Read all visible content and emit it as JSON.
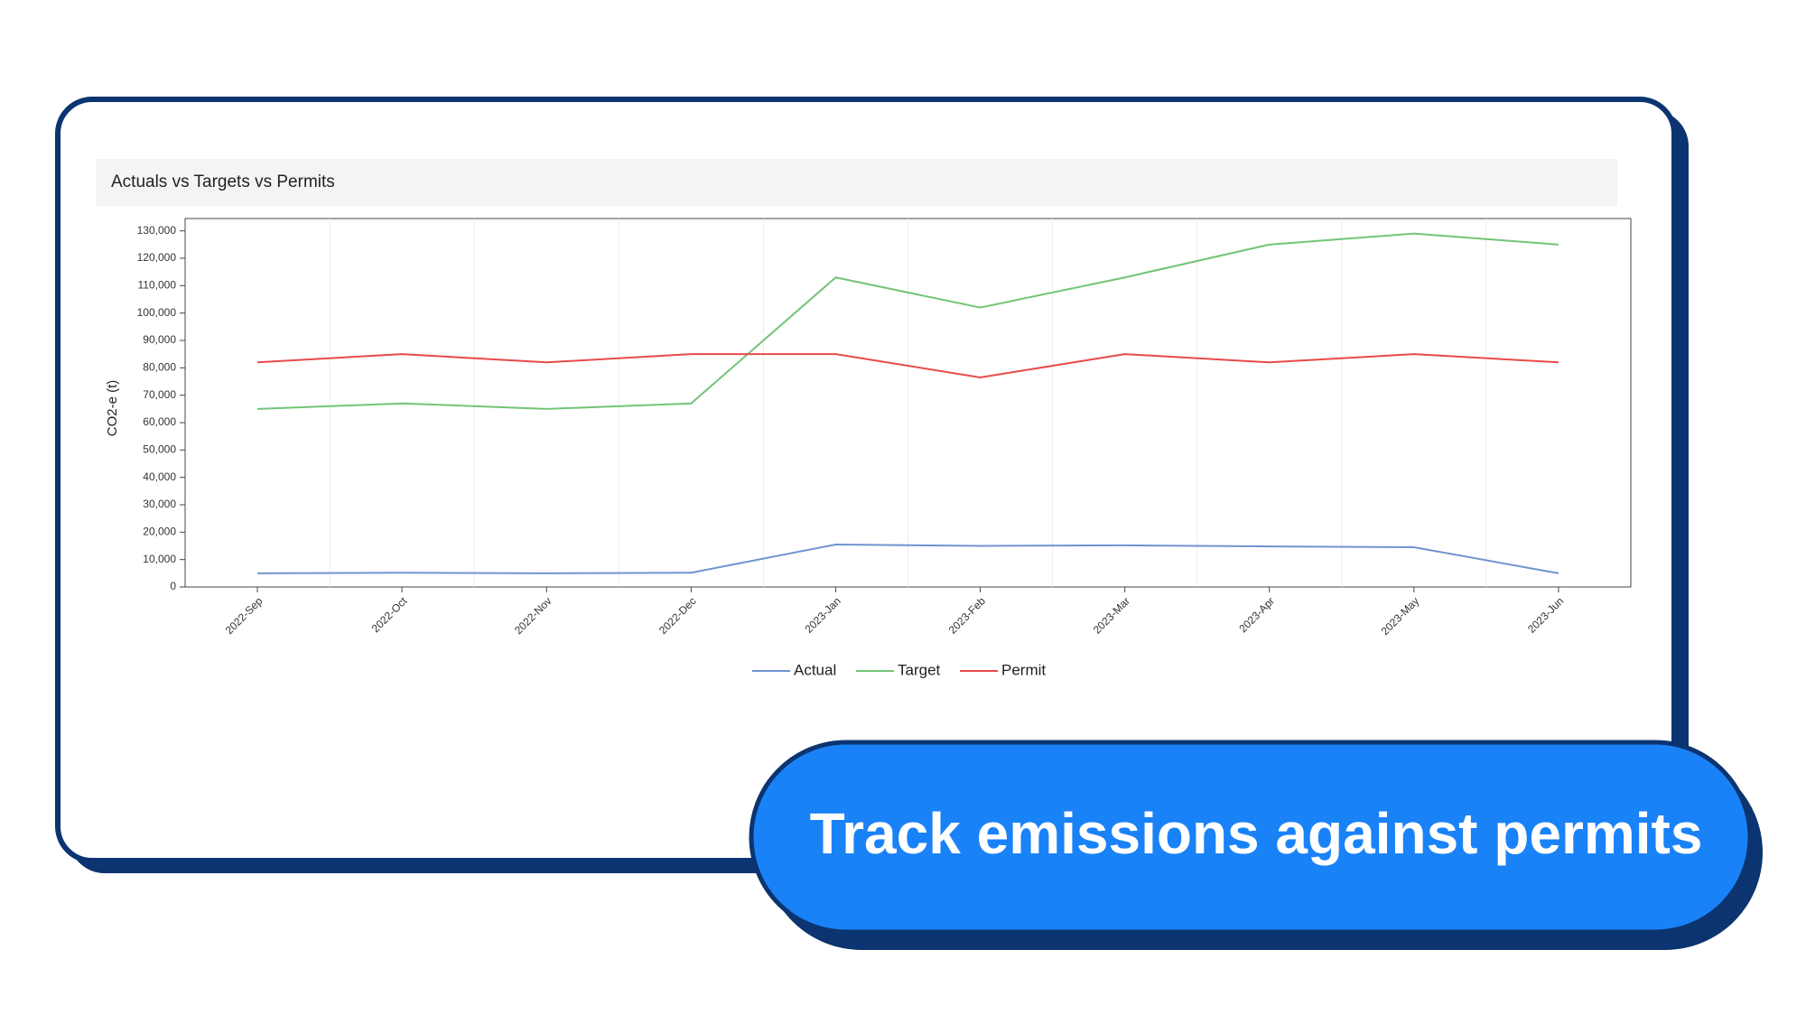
{
  "chart_data": {
    "type": "line",
    "title": "Actuals vs Targets vs Permits",
    "y_label": "CO2-e (t)",
    "categories": [
      "2022-Sep",
      "2022-Oct",
      "2022-Nov",
      "2022-Dec",
      "2023-Jan",
      "2023-Feb",
      "2023-Mar",
      "2023-Apr",
      "2023-May",
      "2023-Jun"
    ],
    "series": [
      {
        "name": "Actual",
        "color": "#6f94cf",
        "values": [
          5000,
          5200,
          5000,
          5200,
          15500,
          15000,
          15200,
          14800,
          14500,
          5000
        ]
      },
      {
        "name": "Target",
        "color": "#73c476",
        "values": [
          65000,
          67000,
          65000,
          67000,
          113000,
          102000,
          113000,
          125000,
          129000,
          125000
        ]
      },
      {
        "name": "Permit",
        "color": "#e84a4a",
        "values": [
          82000,
          85000,
          82000,
          85000,
          85000,
          76500,
          85000,
          82000,
          85000,
          82000
        ]
      }
    ],
    "ylim": [
      0,
      134500
    ],
    "yticks": [
      0,
      {
        "value": 10000,
        "label": "10,000"
      },
      {
        "value": 20000,
        "label": "20,000"
      },
      {
        "value": 30000,
        "label": "30,000"
      },
      {
        "value": 40000,
        "label": "40,000"
      },
      {
        "value": 50000,
        "label": "50,000"
      },
      {
        "value": 60000,
        "label": "60,000"
      },
      {
        "value": 70000,
        "label": "70,000"
      },
      {
        "value": 80000,
        "label": "80,000"
      },
      {
        "value": 90000,
        "label": "90,000"
      },
      {
        "value": 100000,
        "label": "100,000"
      },
      {
        "value": 110000,
        "label": "110,000"
      },
      {
        "value": 120000,
        "label": "120,000"
      },
      {
        "value": 130000,
        "label": "130,000"
      }
    ],
    "legend": "bottom"
  },
  "banner": {
    "text": "Track emissions against permits"
  }
}
